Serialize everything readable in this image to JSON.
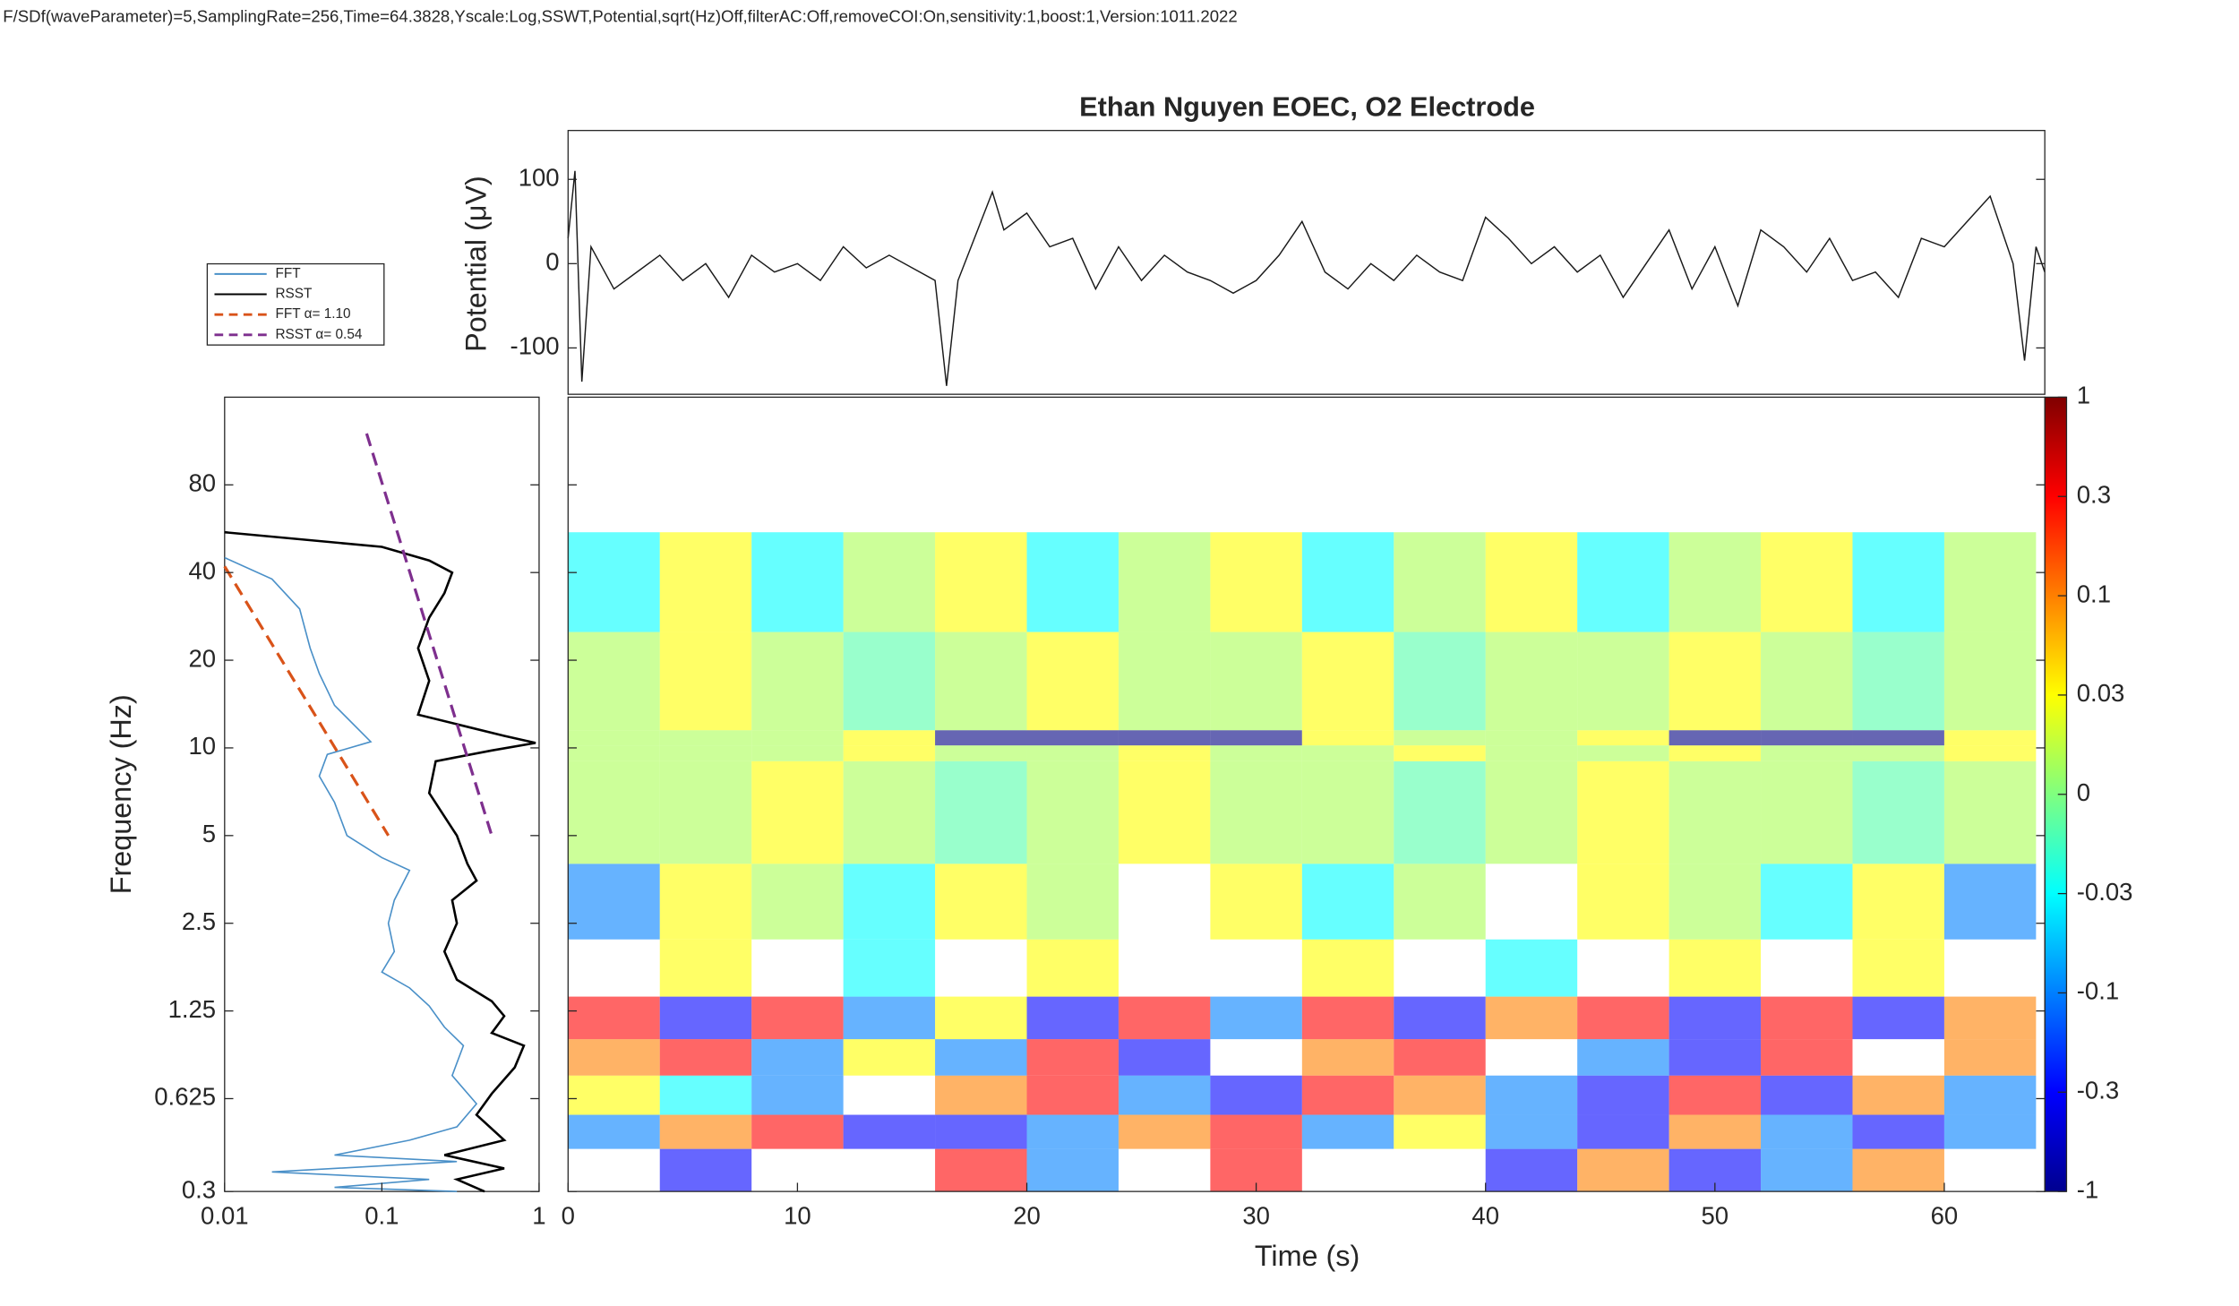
{
  "header": {
    "text": "F/SDf(waveParameter)=5,SamplingRate=256,Time=64.3828,Yscale:Log,SSWT,Potential,sqrt(Hz)Off,filterAC:Off,removeCOI:On,sensitivity:1,boost:1,Version:1011.2022"
  },
  "chart_data": [
    {
      "type": "line",
      "title": "Ethan Nguyen EOEC, O2 Electrode",
      "y_label": "Potential (μV)",
      "color": "#1a1a1a",
      "x": [
        0,
        0.3,
        0.6,
        1,
        2,
        3,
        4,
        5,
        6,
        7,
        8,
        9,
        10,
        11,
        12,
        13,
        14,
        15,
        16,
        16.5,
        17,
        18,
        18.5,
        19,
        20,
        21,
        22,
        23,
        24,
        25,
        26,
        27,
        28,
        29,
        30,
        31,
        32,
        33,
        34,
        35,
        36,
        37,
        38,
        39,
        40,
        41,
        42,
        43,
        44,
        45,
        46,
        47,
        48,
        49,
        50,
        51,
        52,
        53,
        54,
        55,
        56,
        57,
        58,
        59,
        60,
        61,
        62,
        63,
        63.5,
        64,
        64.38
      ],
      "values": [
        30,
        110,
        -140,
        20,
        -30,
        -10,
        10,
        -20,
        0,
        -40,
        10,
        -10,
        0,
        -20,
        20,
        -5,
        10,
        -5,
        -20,
        -145,
        -20,
        50,
        85,
        40,
        60,
        20,
        30,
        -30,
        20,
        -20,
        10,
        -10,
        -20,
        -35,
        -20,
        10,
        50,
        -10,
        -30,
        0,
        -20,
        10,
        -10,
        -20,
        55,
        30,
        0,
        20,
        -10,
        10,
        -40,
        0,
        40,
        -30,
        20,
        -50,
        40,
        20,
        -10,
        30,
        -20,
        -10,
        -40,
        30,
        20,
        50,
        80,
        0,
        -115,
        20,
        -10
      ],
      "xlim": [
        0,
        64.3828
      ],
      "ylim": [
        -155,
        158
      ],
      "yticks": [
        -100,
        0,
        100
      ]
    },
    {
      "type": "spectrum",
      "y_label": "Frequency (Hz)",
      "log_x": true,
      "log_y": true,
      "xlim": [
        0.01,
        1
      ],
      "xticks": [
        0.01,
        0.1,
        1
      ],
      "ylim": [
        0.3,
        160
      ],
      "yticks": [
        0.3,
        0.625,
        1.25,
        2.5,
        5,
        10,
        20,
        40,
        80
      ],
      "series": [
        {
          "name": "FFT",
          "color": "#4a90c8",
          "dash": false,
          "x": [
            0.01,
            0.02,
            0.03,
            0.035,
            0.04,
            0.05,
            0.085,
            0.045,
            0.04,
            0.05,
            0.06,
            0.1,
            0.15,
            0.12,
            0.11,
            0.12,
            0.1,
            0.15,
            0.2,
            0.25,
            0.33,
            0.28,
            0.4,
            0.3,
            0.15,
            0.05,
            0.3,
            0.02,
            0.2,
            0.05,
            0.3
          ],
          "y": [
            45,
            38,
            30,
            22,
            18,
            14,
            10.5,
            9.5,
            8,
            6.5,
            5,
            4.2,
            3.8,
            3,
            2.5,
            2,
            1.7,
            1.5,
            1.3,
            1.1,
            0.95,
            0.75,
            0.6,
            0.5,
            0.45,
            0.4,
            0.38,
            0.35,
            0.33,
            0.31,
            0.3
          ]
        },
        {
          "name": "RSST",
          "color": "#000000",
          "dash": false,
          "x": [
            0.01,
            0.1,
            0.2,
            0.28,
            0.25,
            0.2,
            0.17,
            0.2,
            0.17,
            0.6,
            0.95,
            0.5,
            0.22,
            0.2,
            0.3,
            0.35,
            0.4,
            0.28,
            0.3,
            0.25,
            0.3,
            0.5,
            0.6,
            0.5,
            0.8,
            0.7,
            0.5,
            0.4,
            0.6,
            0.25,
            0.6,
            0.3,
            0.45
          ],
          "y": [
            55,
            49,
            44,
            40,
            34,
            28,
            22,
            17,
            13,
            11,
            10.4,
            9.8,
            9,
            7,
            5,
            4,
            3.5,
            3,
            2.5,
            2,
            1.6,
            1.35,
            1.2,
            1.05,
            0.95,
            0.8,
            0.65,
            0.55,
            0.45,
            0.4,
            0.36,
            0.33,
            0.3
          ]
        },
        {
          "name": "FFT α= 1.10",
          "color": "#d95319",
          "dash": true,
          "x": [
            0.01,
            0.11
          ],
          "y": [
            42,
            5
          ]
        },
        {
          "name": "RSST α= 0.54",
          "color": "#7e2f8e",
          "dash": true,
          "x": [
            0.08,
            0.5
          ],
          "y": [
            120,
            5
          ]
        }
      ]
    },
    {
      "type": "heatmap",
      "x_label": "Time (s)",
      "log_y": true,
      "xlim": [
        0,
        64.3828
      ],
      "xticks": [
        0,
        10,
        20,
        30,
        40,
        50,
        60
      ],
      "ylim": [
        0.3,
        160
      ],
      "yticks": [
        0.3,
        0.625,
        1.25,
        2.5,
        5,
        10,
        20,
        40,
        80
      ],
      "clim": [
        -1,
        1
      ],
      "cticks": [
        -1,
        -0.3,
        -0.1,
        -0.03,
        0,
        0.03,
        0.1,
        0.3,
        1
      ],
      "x_edges": [
        0,
        4,
        8,
        12,
        16,
        20,
        24,
        28,
        32,
        36,
        40,
        44,
        48,
        52,
        56,
        60,
        64
      ],
      "y_edges": [
        0.3,
        0.42,
        0.55,
        0.75,
        1.0,
        1.4,
        2.2,
        4,
        9,
        10.2,
        11.5,
        25,
        55
      ],
      "values": [
        [
          null,
          -0.3,
          null,
          null,
          0.3,
          -0.1,
          null,
          0.3,
          null,
          null,
          -0.3,
          0.1,
          -0.3,
          -0.1,
          0.1,
          null
        ],
        [
          -0.1,
          0.1,
          0.3,
          -0.3,
          -0.3,
          -0.1,
          0.1,
          0.3,
          -0.1,
          0.03,
          -0.1,
          -0.3,
          0.1,
          -0.1,
          -0.3,
          -0.1
        ],
        [
          0.03,
          -0.03,
          -0.1,
          null,
          0.1,
          0.3,
          -0.1,
          -0.3,
          0.3,
          0.1,
          -0.1,
          -0.3,
          0.3,
          -0.3,
          0.1,
          -0.1
        ],
        [
          0.1,
          0.3,
          -0.1,
          0.03,
          -0.1,
          0.3,
          -0.3,
          null,
          0.1,
          0.3,
          null,
          -0.1,
          -0.3,
          0.3,
          null,
          0.1
        ],
        [
          0.3,
          -0.3,
          0.3,
          -0.1,
          0.03,
          -0.3,
          0.3,
          -0.1,
          0.3,
          -0.3,
          0.1,
          0.3,
          -0.3,
          0.3,
          -0.3,
          0.1
        ],
        [
          null,
          0.03,
          null,
          -0.03,
          null,
          0.03,
          null,
          null,
          0.03,
          null,
          -0.03,
          null,
          0.03,
          null,
          0.03,
          null
        ],
        [
          -0.1,
          0.03,
          0.01,
          -0.03,
          0.03,
          0.01,
          null,
          0.03,
          -0.03,
          0.01,
          null,
          0.03,
          0.01,
          -0.03,
          0.03,
          -0.1
        ],
        [
          0.01,
          0.01,
          0.03,
          0.01,
          -0.01,
          0.01,
          0.03,
          0.01,
          0.01,
          -0.01,
          0.01,
          0.03,
          0.01,
          0.01,
          -0.01,
          0.01
        ],
        [
          0.01,
          0.01,
          0.01,
          0.03,
          0.01,
          0.01,
          0.03,
          0.01,
          0.01,
          0.03,
          0.01,
          0.01,
          0.03,
          0.01,
          0.01,
          0.03
        ],
        [
          0.01,
          0.01,
          0.01,
          0.03,
          -1,
          -1,
          -1,
          -1,
          0.03,
          0.01,
          0.01,
          0.03,
          -1,
          -1,
          -1,
          0.03
        ],
        [
          0.01,
          0.03,
          0.01,
          -0.01,
          0.01,
          0.03,
          0.01,
          0.01,
          0.03,
          -0.01,
          0.01,
          0.01,
          0.03,
          0.01,
          -0.01,
          0.01
        ],
        [
          -0.03,
          0.03,
          -0.03,
          0.01,
          0.03,
          -0.03,
          0.01,
          0.03,
          -0.03,
          0.01,
          0.03,
          -0.03,
          0.01,
          0.03,
          -0.03,
          0.01
        ]
      ]
    }
  ]
}
